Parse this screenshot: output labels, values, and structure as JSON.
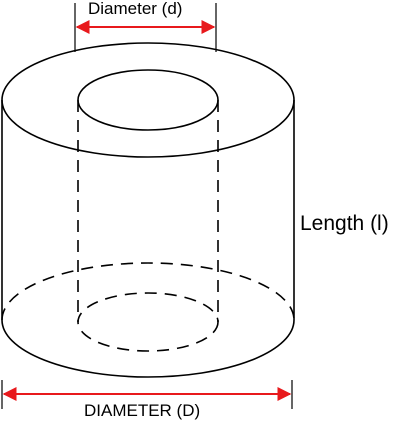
{
  "labels": {
    "inner_diameter": "Diameter (d)",
    "length": "Length (l)",
    "outer_diameter": "DIAMETER (D)"
  },
  "colors": {
    "outline": "#000000",
    "dimension_arrow": "#e8191c",
    "background": "#ffffff"
  }
}
